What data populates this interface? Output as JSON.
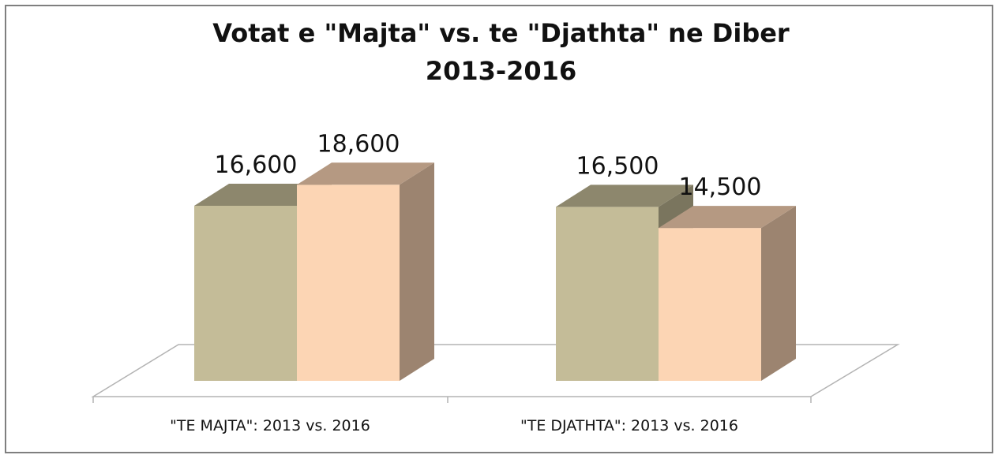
{
  "chart_data": {
    "type": "bar",
    "title": "Votat e \"Majta\" vs. te \"Djathta\" ne Diber",
    "subtitle": "2013-2016",
    "categories": [
      "\"TE MAJTA\": 2013 vs. 2016",
      "\"TE DJATHTA\": 2013 vs. 2016"
    ],
    "series": [
      {
        "values": [
          16600,
          16500
        ],
        "value_labels": [
          "16,600",
          "16,500"
        ],
        "color": "#c4bc98"
      },
      {
        "values": [
          18600,
          14500
        ],
        "value_labels": [
          "18,600",
          "14,500"
        ],
        "color": "#fcd5b4"
      }
    ],
    "ylim": [
      0,
      40000
    ],
    "grid": false,
    "legend": "none",
    "style": "3d-column"
  }
}
